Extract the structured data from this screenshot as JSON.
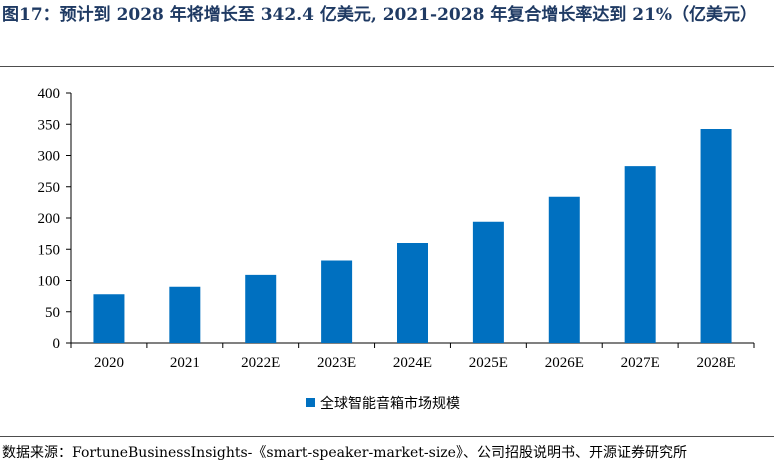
{
  "header": {
    "title": "图17：预计到 2028 年将增长至 342.4 亿美元, 2021-2028 年复合增长率达到 21%（亿美元）"
  },
  "footer": {
    "source": "数据来源：FortuneBusinessInsights-《smart-speaker-market-size》、公司招股说明书、开源证券研究所"
  },
  "chart_data": {
    "type": "bar",
    "title": "",
    "xlabel": "",
    "ylabel": "",
    "categories": [
      "2020",
      "2021",
      "2022E",
      "2023E",
      "2024E",
      "2025E",
      "2026E",
      "2027E",
      "2028E"
    ],
    "series": [
      {
        "name": "全球智能音箱市场规模",
        "color": "#0070c0",
        "values": [
          78,
          90,
          109,
          132,
          160,
          194,
          234,
          283,
          342.4
        ]
      }
    ],
    "ylim": [
      0,
      400
    ],
    "yticks": [
      0,
      50,
      100,
      150,
      200,
      250,
      300,
      350,
      400
    ],
    "grid": false,
    "legend_position": "bottom-center"
  }
}
